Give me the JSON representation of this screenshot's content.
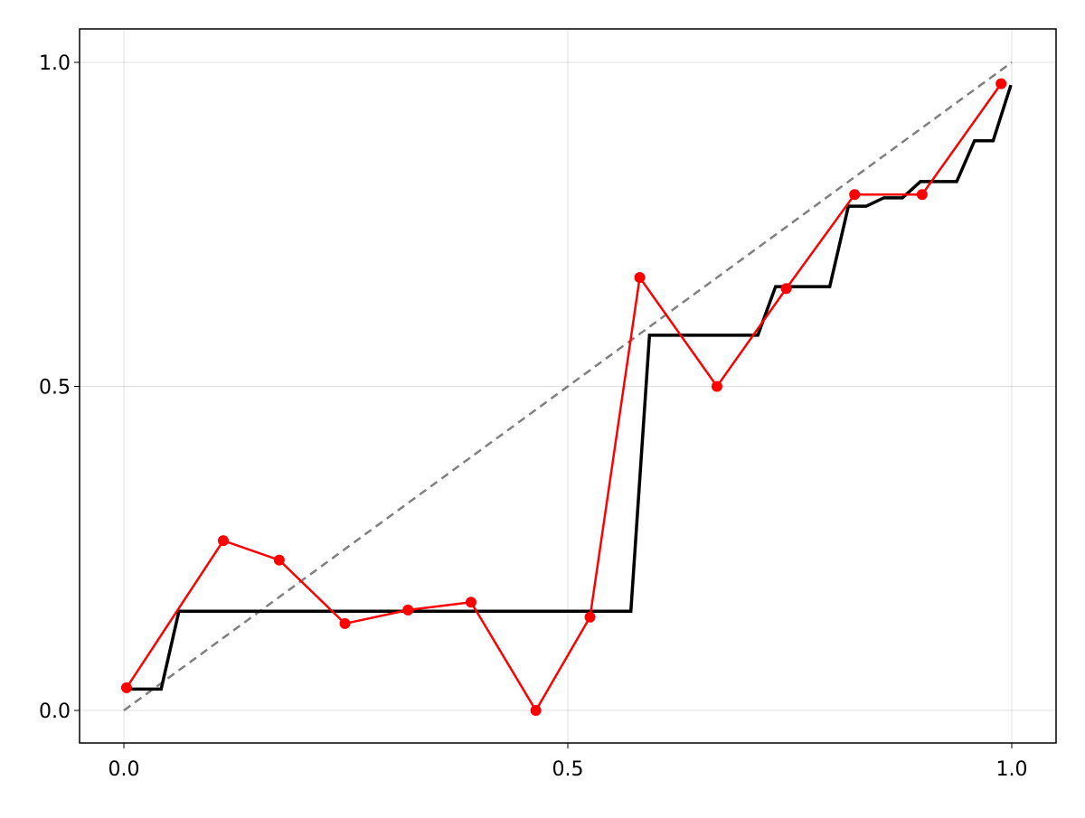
{
  "chart_data": {
    "type": "line",
    "title": "",
    "xlabel": "",
    "ylabel": "",
    "xlim": [
      -0.1,
      1.05
    ],
    "ylim": [
      -0.05,
      1.05
    ],
    "xticks": [
      0.0,
      0.5,
      1.0
    ],
    "yticks": [
      0.0,
      0.5,
      1.0
    ],
    "xtick_labels": [
      "0.0",
      "0.5",
      "1.0"
    ],
    "ytick_labels": [
      "0.0",
      "0.5",
      "1.0"
    ],
    "grid": true,
    "legend": "none",
    "series": [
      {
        "style": "dashed",
        "color": "#808080",
        "x": [
          0,
          1
        ],
        "y": [
          0,
          1
        ]
      },
      {
        "style": "step",
        "color": "#000000",
        "x": [
          0.003,
          0.042,
          0.062,
          0.571,
          0.592,
          0.714,
          0.734,
          0.795,
          0.816,
          0.836,
          0.856,
          0.877,
          0.897,
          0.938,
          0.958,
          0.979,
          0.999
        ],
        "y": [
          0.033,
          0.033,
          0.153,
          0.153,
          0.579,
          0.579,
          0.654,
          0.654,
          0.778,
          0.778,
          0.791,
          0.791,
          0.816,
          0.816,
          0.879,
          0.879,
          0.965
        ]
      },
      {
        "style": "line-markers",
        "color": "#ff0000",
        "x": [
          0.003,
          0.112,
          0.175,
          0.249,
          0.32,
          0.391,
          0.464,
          0.525,
          0.581,
          0.668,
          0.746,
          0.823,
          0.899,
          0.988
        ],
        "y": [
          0.035,
          0.262,
          0.232,
          0.134,
          0.155,
          0.167,
          0.0,
          0.144,
          0.668,
          0.5,
          0.651,
          0.796,
          0.796,
          0.967
        ]
      }
    ]
  }
}
